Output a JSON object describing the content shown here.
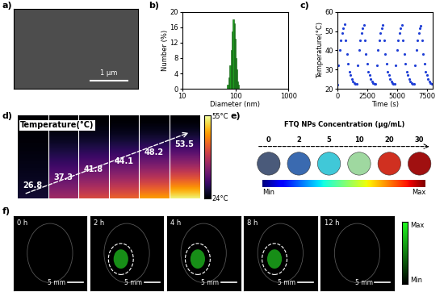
{
  "chart_data": [
    {
      "type": "histogram",
      "title": "b)",
      "x_label": "Diameter (nm)",
      "y_label": "Number (%)",
      "bins": [
        70,
        74,
        78,
        82,
        86,
        90,
        94,
        98,
        102,
        106,
        110,
        114,
        118
      ],
      "counts": [
        1,
        3,
        6,
        10,
        15,
        18,
        17,
        13,
        8,
        5,
        2,
        1
      ],
      "color": "#1e9e1e",
      "log": "x",
      "xlim": [
        10,
        1000
      ],
      "xticks": [
        10,
        100,
        1000
      ],
      "ylim": [
        0,
        20
      ],
      "yticks": [
        0,
        4,
        8,
        12,
        16,
        20
      ]
    },
    {
      "type": "line",
      "title": "c)",
      "x_label": "Time (s)",
      "y_label": "Temperature(°C)",
      "x": [
        0,
        100,
        200,
        300,
        400,
        500,
        600,
        700,
        800,
        900,
        1000,
        1100,
        1200,
        1300,
        1400,
        1500,
        1600,
        1700,
        1800,
        1900,
        2000,
        2100,
        2200,
        2300,
        2400,
        2500,
        2600,
        2700,
        2800,
        2900,
        3000,
        3100,
        3200,
        3300,
        3400,
        3500,
        3600,
        3700,
        3800,
        3900,
        4000,
        4100,
        4200,
        4300,
        4400,
        4500,
        4600,
        4700,
        4800,
        4900,
        5000,
        5100,
        5200,
        5300,
        5400,
        5500,
        5600,
        5700,
        5800,
        5900,
        6000,
        6100,
        6200,
        6300,
        6400,
        6500,
        6600,
        6700,
        6800,
        6900,
        7000,
        7100,
        7200,
        7300,
        7400,
        7500,
        7600,
        7700,
        7800,
        7900
      ],
      "values": [
        22,
        32,
        40,
        45,
        49,
        51.5,
        53.5,
        45,
        38,
        33,
        29,
        27,
        25,
        24,
        23,
        22.5,
        22.5,
        32,
        40,
        45,
        49,
        51.5,
        53,
        45,
        38,
        33,
        29,
        27,
        25,
        24,
        23,
        22.5,
        22.5,
        32,
        40,
        45,
        49,
        51.5,
        53.2,
        45,
        38,
        33,
        29,
        27,
        25,
        24,
        23,
        22.5,
        22.5,
        32,
        40,
        45,
        49,
        51.5,
        53,
        45,
        38,
        33,
        29,
        27,
        25,
        24,
        23,
        22.5,
        22.5,
        32,
        40,
        45,
        49,
        51.5,
        52.8,
        45,
        38,
        33,
        29,
        27,
        25,
        24,
        23,
        22.5
      ],
      "color": "#1f3fd6",
      "marker": "dot",
      "xlim": [
        0,
        8000
      ],
      "xticks": [
        0,
        2500,
        5000,
        7500
      ],
      "ylim": [
        20,
        60
      ],
      "yticks": [
        20,
        30,
        40,
        50,
        60
      ]
    }
  ],
  "image_panels": {
    "a": {
      "label": "a)",
      "scale_bar": "1 μm"
    },
    "d": {
      "label": "d)",
      "title": "Temperature(°C)",
      "temperatures": [
        26.8,
        37.3,
        41.8,
        44.1,
        48.2,
        53.5
      ],
      "colorbar": {
        "range": [
          24,
          55
        ],
        "ticks": [
          {
            "value": 55,
            "label": "55°C"
          },
          {
            "value": 24,
            "label": "24°C"
          }
        ]
      }
    },
    "e": {
      "label": "e)",
      "title": "FTQ NPs Concentration (μg/mL)",
      "concentrations": [
        0,
        2,
        5,
        10,
        20,
        30
      ],
      "colors": [
        "#4a5a7a",
        "#3a6ab0",
        "#40c8d8",
        "#9fd8a0",
        "#d03020",
        "#a01010"
      ],
      "colorbar_labels": [
        "Min",
        "Max"
      ]
    },
    "f": {
      "label": "f)",
      "frames": [
        {
          "time": "0 h",
          "marked": false
        },
        {
          "time": "2 h",
          "marked": true
        },
        {
          "time": "4 h",
          "marked": true
        },
        {
          "time": "8 h",
          "marked": true
        },
        {
          "time": "12 h",
          "marked": false
        }
      ],
      "scale_bar": "5 mm",
      "colorbar_labels": [
        "Min",
        "Max"
      ]
    }
  }
}
